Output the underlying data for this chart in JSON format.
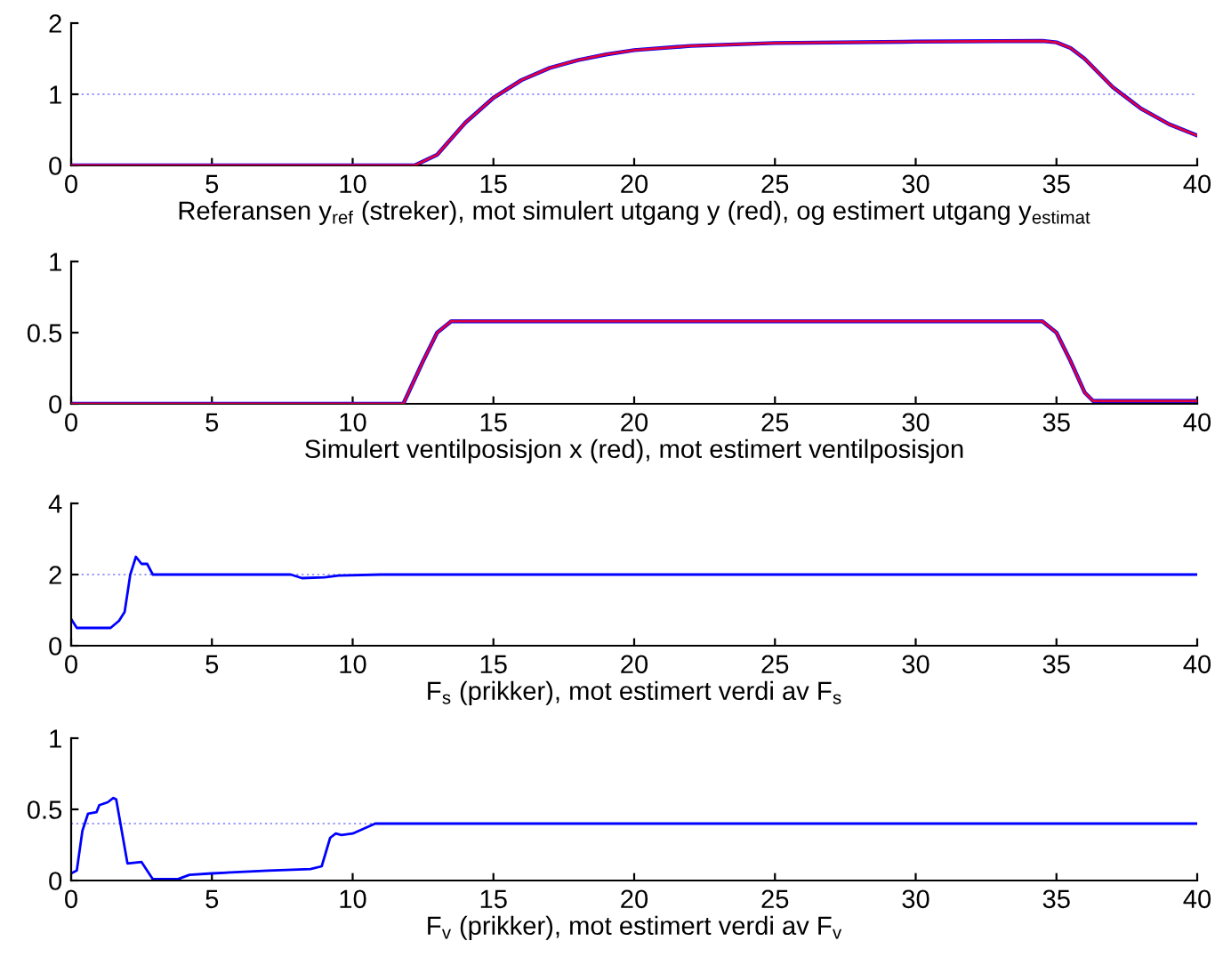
{
  "chart_data": [
    {
      "type": "line",
      "xlabel": "Referansen y$_{ref}$ (streker), mot simulert utgang y (red), og estimert utgang y$_{estimat}$",
      "xlim": [
        0,
        40
      ],
      "xticks": [
        0,
        5,
        10,
        15,
        20,
        25,
        30,
        35,
        40
      ],
      "ylim": [
        0,
        2
      ],
      "yticks": [
        0,
        1,
        2
      ],
      "grid": false,
      "ref_lines": [
        {
          "axis": "y",
          "value": 1,
          "color": "#9999ff",
          "line_style": "dotted"
        }
      ],
      "series": [
        {
          "color": "#0000ff",
          "x": [
            0,
            12.2,
            13,
            14,
            15,
            16,
            17,
            18,
            19,
            20,
            22,
            25,
            30,
            34.5,
            35,
            35.5,
            36,
            37,
            38,
            39,
            40
          ],
          "values": [
            0,
            0,
            0.15,
            0.6,
            0.95,
            1.2,
            1.37,
            1.48,
            1.56,
            1.62,
            1.68,
            1.72,
            1.74,
            1.75,
            1.73,
            1.65,
            1.5,
            1.1,
            0.8,
            0.58,
            0.42
          ]
        },
        {
          "color": "#e0003c",
          "x": [
            0,
            12.2,
            13,
            14,
            15,
            16,
            17,
            18,
            19,
            20,
            22,
            25,
            30,
            34.5,
            35,
            35.5,
            36,
            37,
            38,
            39,
            40
          ],
          "values": [
            0,
            0,
            0.15,
            0.6,
            0.95,
            1.2,
            1.37,
            1.48,
            1.56,
            1.62,
            1.68,
            1.72,
            1.74,
            1.75,
            1.73,
            1.65,
            1.5,
            1.1,
            0.8,
            0.58,
            0.42
          ]
        }
      ]
    },
    {
      "type": "line",
      "xlabel": "Simulert ventilposisjon x (red), mot estimert ventilposisjon",
      "xlim": [
        0,
        40
      ],
      "xticks": [
        0,
        5,
        10,
        15,
        20,
        25,
        30,
        35,
        40
      ],
      "ylim": [
        0,
        1
      ],
      "yticks": [
        0,
        0.5,
        1
      ],
      "grid": false,
      "series": [
        {
          "color": "#0000ff",
          "x": [
            0,
            11.8,
            12.5,
            13,
            13.5,
            34.5,
            35,
            35.5,
            36,
            36.3,
            40
          ],
          "values": [
            0,
            0,
            0.3,
            0.5,
            0.58,
            0.58,
            0.5,
            0.3,
            0.08,
            0.02,
            0.02
          ]
        },
        {
          "color": "#e0003c",
          "x": [
            0,
            11.8,
            12.5,
            13,
            13.5,
            34.5,
            35,
            35.5,
            36,
            36.3,
            40
          ],
          "values": [
            0,
            0,
            0.3,
            0.5,
            0.58,
            0.58,
            0.5,
            0.3,
            0.08,
            0.02,
            0.02
          ]
        }
      ]
    },
    {
      "type": "line",
      "xlabel": "F$_{s}$ (prikker), mot estimert verdi av F$_{s}$",
      "xlim": [
        0,
        40
      ],
      "xticks": [
        0,
        5,
        10,
        15,
        20,
        25,
        30,
        35,
        40
      ],
      "ylim": [
        0,
        4
      ],
      "yticks": [
        0,
        2,
        4
      ],
      "grid": false,
      "ref_lines": [
        {
          "axis": "y",
          "value": 2,
          "color": "#9999ff",
          "line_style": "dotted"
        }
      ],
      "series": [
        {
          "color": "#0000ff",
          "x": [
            0,
            0.2,
            1.4,
            1.7,
            1.9,
            2.1,
            2.3,
            2.5,
            2.7,
            2.9,
            7.8,
            8.2,
            9,
            9.5,
            11,
            40
          ],
          "values": [
            0.75,
            0.5,
            0.5,
            0.7,
            0.95,
            2.0,
            2.5,
            2.3,
            2.3,
            2.0,
            2.0,
            1.9,
            1.92,
            1.97,
            2.0,
            2.0
          ]
        }
      ]
    },
    {
      "type": "line",
      "xlabel": "F$_{v}$ (prikker), mot estimert verdi av F$_{v}$",
      "xlim": [
        0,
        40
      ],
      "xticks": [
        0,
        5,
        10,
        15,
        20,
        25,
        30,
        35,
        40
      ],
      "ylim": [
        0,
        1
      ],
      "yticks": [
        0,
        0.5,
        1
      ],
      "grid": false,
      "ref_lines": [
        {
          "axis": "y",
          "value": 0.4,
          "color": "#9999ff",
          "line_style": "dotted"
        }
      ],
      "series": [
        {
          "color": "#0000ff",
          "x": [
            0,
            0.2,
            0.4,
            0.6,
            0.9,
            1.0,
            1.3,
            1.5,
            1.6,
            2.0,
            2.5,
            2.9,
            3.8,
            4.2,
            5,
            6,
            7,
            8.5,
            8.9,
            9.2,
            9.4,
            9.6,
            10,
            10.8,
            40
          ],
          "values": [
            0.05,
            0.07,
            0.35,
            0.47,
            0.48,
            0.53,
            0.55,
            0.58,
            0.57,
            0.12,
            0.13,
            0.01,
            0.01,
            0.04,
            0.05,
            0.06,
            0.07,
            0.08,
            0.1,
            0.3,
            0.33,
            0.32,
            0.33,
            0.4,
            0.4
          ]
        }
      ]
    }
  ]
}
